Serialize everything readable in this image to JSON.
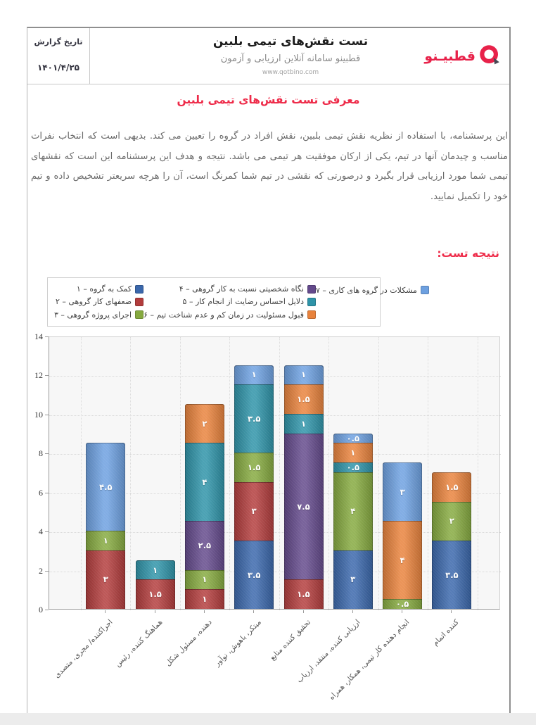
{
  "header": {
    "report_date_label": "تاریخ گزارش",
    "report_date": "۱۴۰۱/۴/۲۵",
    "title": "تست نقش‌های تیمی بلبین",
    "subtitle": "قطبینو سامانه آنلاین ارزیابی و آزمون",
    "website": "www.qotbino.com",
    "logo_text": "قطبیـنو"
  },
  "intro": {
    "heading": "معرفی تست نقش‌های تیمی بلبین",
    "body": "این پرسشنامه، با استفاده از نظریه نقش تیمی بلبین، نقش افراد در گروه را تعیین می کند. بدیهی است که انتخاب نفرات مناسب و چیدمان آنها در تیم، یکی از ارکان موفقیت هر تیمی می باشد. نتیجه و هدف این پرسشنامه این است که نقشهای تیمی شما مورد ارزیابی قرار بگیرد و درصورتی که نقشی در تیم شما کمرنگ است، آن را هرچه سریعتر تشخیص داده و تیم خود را تکمیل نمایید."
  },
  "result_heading": "نتیجه تست:",
  "colors": {
    "accent_red": "#ee2b49",
    "logo_red": "#e8224a",
    "logo_tail_dark": "#474753"
  },
  "chart_data": {
    "type": "bar",
    "stacked": true,
    "title": "",
    "xlabel": "",
    "ylabel": "",
    "ylim": [
      0,
      14
    ],
    "yticks": [
      0,
      2,
      4,
      6,
      8,
      10,
      12,
      14
    ],
    "grid": true,
    "legend_position": "top-left",
    "categories": [
      "اجراکننده/ مجری، متصدی",
      "هماهنگ کننده، رئیس",
      "دهنده، مسئول شکل",
      "مبتکر، باهوش، نوآور",
      "تحقیق کننده منابع",
      "ارزیابی کننده، منتقد، ارزیاب",
      "انجام دهنده کار تیمی، همکار، همراه",
      "کننده اتمام"
    ],
    "series": [
      {
        "name": "کمک به گروه – ۱",
        "color": "#3a67ab",
        "values": [
          0,
          0,
          0,
          3.5,
          0,
          3,
          0,
          3.5
        ]
      },
      {
        "name": "ضعفهای کار گروهی – ۲",
        "color": "#b23c3c",
        "values": [
          3,
          1.5,
          1,
          3,
          1.5,
          0,
          0,
          0
        ]
      },
      {
        "name": "اجرای پروژه گروهی – ۳",
        "color": "#85a93f",
        "values": [
          1,
          0,
          1,
          1.5,
          0,
          4,
          0.5,
          2
        ]
      },
      {
        "name": "نگاه شخصیتی نسبت به کار گروهی – ۴",
        "color": "#63498b",
        "values": [
          0,
          0,
          2.5,
          0,
          7.5,
          0,
          0,
          0
        ]
      },
      {
        "name": "دلایل احساس رضایت از انجام کار – ۵",
        "color": "#2e93a8",
        "values": [
          0,
          1,
          4,
          3.5,
          1,
          0.5,
          0,
          0
        ]
      },
      {
        "name": "قبول مسئولیت در زمان کم و عدم شناخت تیم – ۶",
        "color": "#e8823c",
        "values": [
          0,
          0,
          2,
          0,
          1.5,
          1,
          4,
          1.5
        ]
      },
      {
        "name": "مشکلات در گروه های کاری – ۷",
        "color": "#6da0e0",
        "values": [
          4.5,
          0,
          0,
          1,
          1,
          0.5,
          3,
          0
        ]
      }
    ],
    "totals": [
      8.5,
      2.5,
      10.5,
      12.5,
      12.5,
      9,
      7.5,
      7
    ],
    "legend_columns": [
      [
        0,
        1,
        2
      ],
      [
        3,
        4,
        5
      ],
      [
        6
      ]
    ]
  }
}
